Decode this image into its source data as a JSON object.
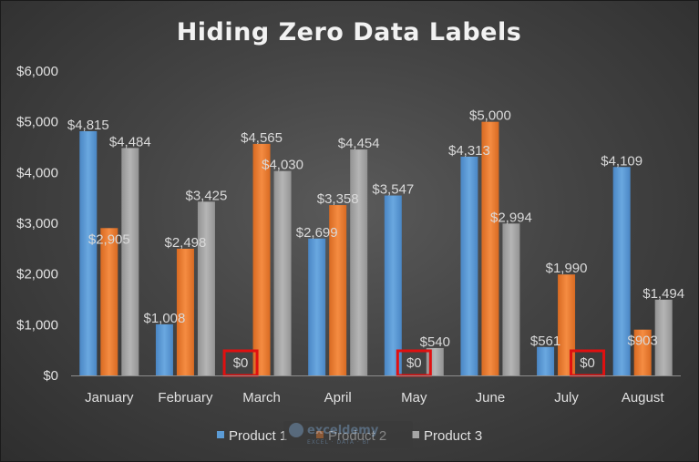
{
  "chart_data": {
    "type": "bar",
    "title": "Hiding Zero Data Labels",
    "categories": [
      "January",
      "February",
      "March",
      "April",
      "May",
      "June",
      "July",
      "August"
    ],
    "series": [
      {
        "name": "Product 1",
        "values": [
          4815,
          1008,
          0,
          2699,
          3547,
          4313,
          561,
          4109
        ],
        "labels": [
          "$4,815",
          "$1,008",
          "$0",
          "$2,699",
          "$3,547",
          "$4,313",
          "$561",
          "$4,109"
        ]
      },
      {
        "name": "Product 2",
        "values": [
          2905,
          2498,
          4565,
          3358,
          0,
          5000,
          1990,
          903
        ],
        "labels": [
          "$2,905",
          "$2,498",
          "$4,565",
          "$3,358",
          "$0",
          "$5,000",
          "$1,990",
          "$903"
        ]
      },
      {
        "name": "Product 3",
        "values": [
          4484,
          3425,
          4030,
          4454,
          540,
          2994,
          0,
          1494
        ],
        "labels": [
          "$4,484",
          "$3,425",
          "$4,030",
          "$4,454",
          "$540",
          "$2,994",
          "$0",
          "$1,494"
        ]
      }
    ],
    "y_ticks": [
      "$0",
      "$1,000",
      "$2,000",
      "$3,000",
      "$4,000",
      "$5,000",
      "$6,000"
    ],
    "ylim": [
      0,
      6000
    ],
    "grid": false,
    "legend": "bottom",
    "highlighted_labels": "zero-value labels boxed in red",
    "colors": {
      "Product 1": "#5b9bd5",
      "Product 2": "#ed7d31",
      "Product 3": "#a5a5a5",
      "highlight": "#e01010"
    }
  },
  "watermark": {
    "name": "exceldemy",
    "tagline": "EXCEL · DATA · BI"
  }
}
